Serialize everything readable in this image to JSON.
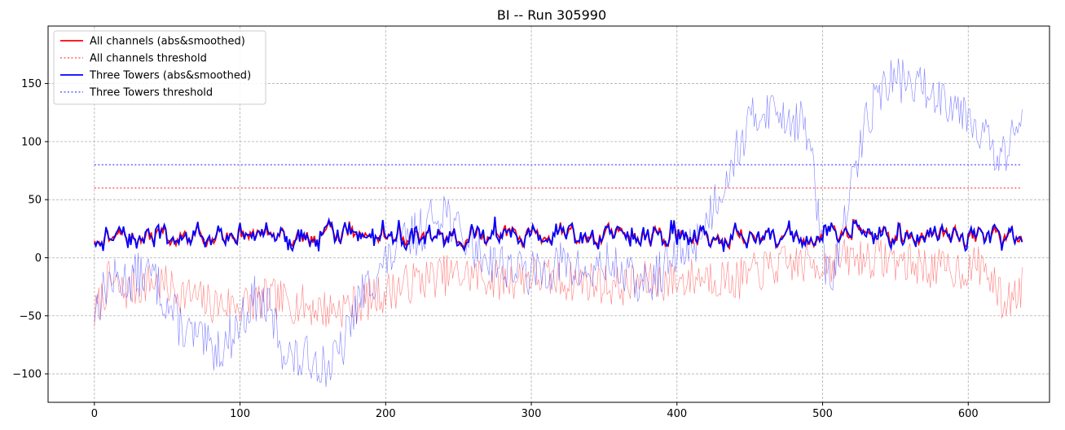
{
  "chart_data": {
    "type": "line",
    "title": "BI -- Run 305990",
    "xlabel": "",
    "ylabel": "",
    "xlim": [
      -31.8,
      655.8
    ],
    "ylim": [
      -124.5,
      199.5
    ],
    "xticks": [
      0,
      100,
      200,
      300,
      400,
      500,
      600
    ],
    "yticks": [
      -100,
      -50,
      0,
      50,
      100,
      150
    ],
    "grid": true,
    "legend_position": "top-left",
    "n_points": 638,
    "legend": [
      {
        "label": "All channels (abs&smoothed)",
        "color": "#ff0000",
        "style": "solid"
      },
      {
        "label": "All channels threshold",
        "color": "#ff0000",
        "style": "dotted"
      },
      {
        "label": "Three Towers (abs&smoothed)",
        "color": "#0000ff",
        "style": "solid"
      },
      {
        "label": "Three Towers threshold",
        "color": "#0000ff",
        "style": "dotted"
      }
    ],
    "thresholds": [
      {
        "name": "All channels threshold",
        "y": 60,
        "x": [
          0,
          637
        ],
        "color": "#ff0000"
      },
      {
        "name": "Three Towers threshold",
        "y": 80,
        "x": [
          0,
          637
        ],
        "color": "#0000ff"
      }
    ],
    "raw_all_channels_keypoints": [
      [
        0,
        -50
      ],
      [
        10,
        -20
      ],
      [
        20,
        -30
      ],
      [
        40,
        -20
      ],
      [
        60,
        -30
      ],
      [
        80,
        -40
      ],
      [
        100,
        -40
      ],
      [
        120,
        -35
      ],
      [
        140,
        -40
      ],
      [
        160,
        -45
      ],
      [
        180,
        -40
      ],
      [
        200,
        -30
      ],
      [
        220,
        -20
      ],
      [
        240,
        -15
      ],
      [
        260,
        -15
      ],
      [
        280,
        -20
      ],
      [
        300,
        -15
      ],
      [
        320,
        -20
      ],
      [
        340,
        -20
      ],
      [
        360,
        -25
      ],
      [
        380,
        -20
      ],
      [
        400,
        -20
      ],
      [
        420,
        -15
      ],
      [
        440,
        -20
      ],
      [
        460,
        -10
      ],
      [
        480,
        -5
      ],
      [
        500,
        -5
      ],
      [
        520,
        0
      ],
      [
        540,
        0
      ],
      [
        560,
        -5
      ],
      [
        580,
        -10
      ],
      [
        600,
        -10
      ],
      [
        610,
        -5
      ],
      [
        620,
        -30
      ],
      [
        625,
        -40
      ],
      [
        637,
        -25
      ]
    ],
    "raw_three_towers_keypoints": [
      [
        0,
        -45
      ],
      [
        10,
        -20
      ],
      [
        20,
        -20
      ],
      [
        30,
        -15
      ],
      [
        40,
        -15
      ],
      [
        50,
        -40
      ],
      [
        60,
        -60
      ],
      [
        70,
        -70
      ],
      [
        80,
        -80
      ],
      [
        90,
        -75
      ],
      [
        100,
        -55
      ],
      [
        110,
        -35
      ],
      [
        120,
        -45
      ],
      [
        130,
        -80
      ],
      [
        140,
        -90
      ],
      [
        150,
        -85
      ],
      [
        160,
        -95
      ],
      [
        170,
        -80
      ],
      [
        180,
        -40
      ],
      [
        190,
        -20
      ],
      [
        200,
        -5
      ],
      [
        210,
        10
      ],
      [
        220,
        20
      ],
      [
        230,
        30
      ],
      [
        240,
        45
      ],
      [
        250,
        20
      ],
      [
        260,
        10
      ],
      [
        270,
        0
      ],
      [
        280,
        -5
      ],
      [
        290,
        -10
      ],
      [
        300,
        -15
      ],
      [
        310,
        -10
      ],
      [
        320,
        -5
      ],
      [
        330,
        -10
      ],
      [
        340,
        -15
      ],
      [
        350,
        -5
      ],
      [
        360,
        -10
      ],
      [
        370,
        -20
      ],
      [
        380,
        -25
      ],
      [
        390,
        -10
      ],
      [
        400,
        0
      ],
      [
        410,
        10
      ],
      [
        420,
        30
      ],
      [
        430,
        60
      ],
      [
        440,
        90
      ],
      [
        450,
        115
      ],
      [
        460,
        130
      ],
      [
        470,
        125
      ],
      [
        480,
        120
      ],
      [
        490,
        110
      ],
      [
        495,
        60
      ],
      [
        500,
        0
      ],
      [
        505,
        -20
      ],
      [
        510,
        0
      ],
      [
        515,
        30
      ],
      [
        520,
        60
      ],
      [
        530,
        120
      ],
      [
        540,
        145
      ],
      [
        550,
        155
      ],
      [
        560,
        150
      ],
      [
        570,
        145
      ],
      [
        580,
        140
      ],
      [
        590,
        135
      ],
      [
        600,
        125
      ],
      [
        610,
        110
      ],
      [
        620,
        80
      ],
      [
        630,
        100
      ],
      [
        637,
        120
      ]
    ],
    "series_names": [
      "All channels (abs&smoothed)",
      "Three Towers (abs&smoothed)"
    ],
    "smoothed_level_approx": 18
  }
}
